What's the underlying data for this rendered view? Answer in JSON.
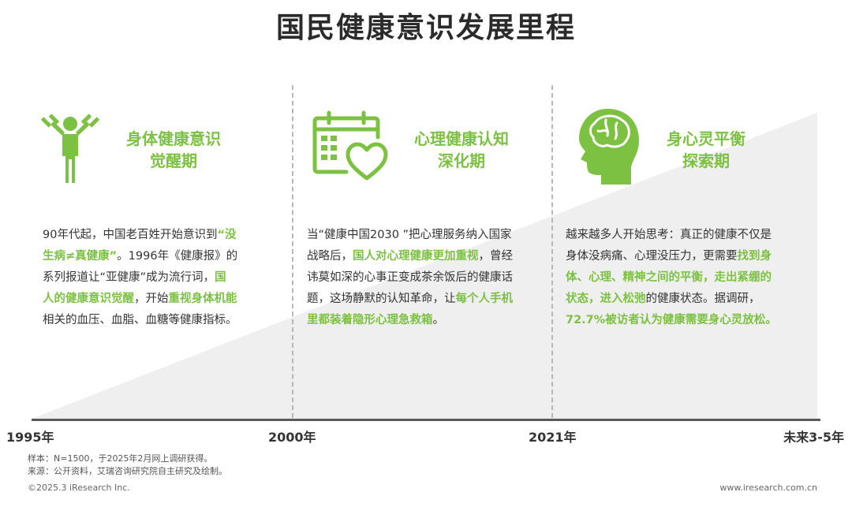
{
  "title": "国民健康意识发展里程",
  "colors": {
    "accent": "#7cc142",
    "text": "#333333",
    "wedge": "#efefef",
    "axis": "#595959"
  },
  "stages": [
    {
      "icon": "fitness-person-icon",
      "title_line1": "身体健康意识",
      "title_line2": "觉醒期",
      "lines": [
        [
          {
            "t": "90年代起，中国老百姓开始意识到"
          },
          {
            "t": "“没",
            "hl": true
          }
        ],
        [
          {
            "t": "生病≠真健康”",
            "hl": true
          },
          {
            "t": "。1996年《健康报》的"
          }
        ],
        [
          {
            "t": "系列报道让“亚健康”成为流行词，"
          },
          {
            "t": "国",
            "hl": true
          }
        ],
        [
          {
            "t": "人的健康意识觉醒",
            "hl": true
          },
          {
            "t": "，开始"
          },
          {
            "t": "重视身体机能",
            "hl": true
          }
        ],
        [
          {
            "t": "相关的血压、血脂、血糖等健康指标。"
          }
        ]
      ]
    },
    {
      "icon": "calendar-heart-icon",
      "title_line1": "心理健康认知",
      "title_line2": "深化期",
      "lines": [
        [
          {
            "t": "当“健康中国2030 ”把心理服务纳入国家"
          }
        ],
        [
          {
            "t": "战略后，"
          },
          {
            "t": "国人对心理健康更加重视",
            "hl": true
          },
          {
            "t": "，曾经"
          }
        ],
        [
          {
            "t": "讳莫如深的心事正变成茶余饭后的健康话"
          }
        ],
        [
          {
            "t": "题，这场静默的认知革命，让"
          },
          {
            "t": "每个人手机",
            "hl": true
          }
        ],
        [
          {
            "t": "里都装着隐形心理急救箱",
            "hl": true
          },
          {
            "t": "。"
          }
        ]
      ]
    },
    {
      "icon": "head-brain-icon",
      "title_line1": "身心灵平衡",
      "title_line2": "探索期",
      "lines": [
        [
          {
            "t": "越来越多人开始思考：真正的健康不仅是"
          }
        ],
        [
          {
            "t": "身体没病痛、心理没压力，更需要"
          },
          {
            "t": "找到身",
            "hl": true
          }
        ],
        [
          {
            "t": "体、心理、精神之间的平衡，走出紧绷的",
            "hl": true
          }
        ],
        [
          {
            "t": "状态，进入松弛",
            "hl": true
          },
          {
            "t": "的健康状态。据调研，"
          }
        ],
        [
          {
            "t": "72.7%被访者认为健康需要身心灵放松。",
            "hl": true
          }
        ]
      ]
    }
  ],
  "timeline": [
    "1995年",
    "2000年",
    "2021年",
    "未来3-5年"
  ],
  "notes": {
    "sample": "样本：N=1500，于2025年2月网上调研获得。",
    "source": "来源：公开资料，艾瑞咨询研究院自主研究及绘制。"
  },
  "footer": {
    "copyright": "©2025.3 iResearch Inc.",
    "website": "www.iresearch.com.cn"
  }
}
